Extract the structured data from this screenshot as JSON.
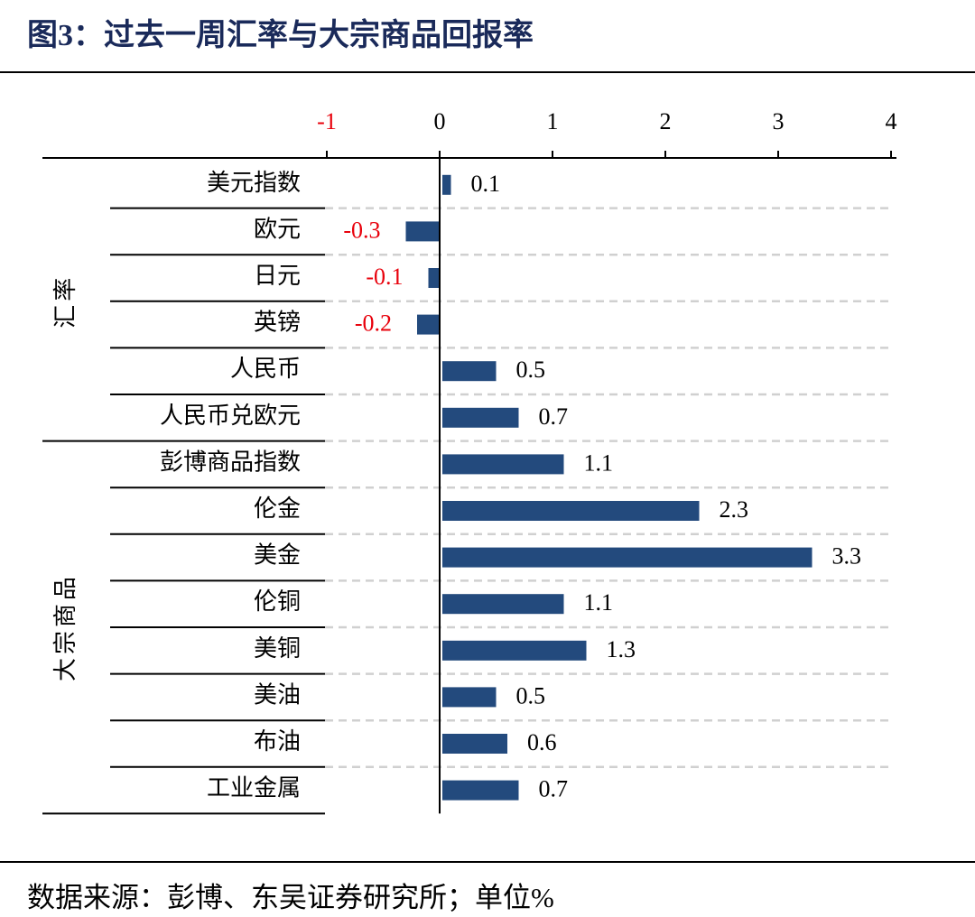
{
  "chart_data": {
    "type": "bar",
    "orientation": "horizontal",
    "title": "图3：过去一周汇率与大宗商品回报率",
    "source": "数据来源：彭博、东吴证券研究所；单位%",
    "color": "#234a7d",
    "negative_label_color": "#e8000b",
    "xlim": [
      -1,
      4
    ],
    "xticks": [
      -1,
      0,
      1,
      2,
      3,
      4
    ],
    "groups": [
      {
        "name": "汇率",
        "categories": [
          "美元指数",
          "欧元",
          "日元",
          "英镑",
          "人民币",
          "人民币兑欧元"
        ],
        "values": [
          0.1,
          -0.3,
          -0.1,
          -0.2,
          0.5,
          0.7
        ]
      },
      {
        "name": "大宗商品",
        "categories": [
          "彭博商品指数",
          "伦金",
          "美金",
          "伦铜",
          "美铜",
          "美油",
          "布油",
          "工业金属"
        ],
        "values": [
          1.1,
          2.3,
          3.3,
          1.1,
          1.3,
          0.5,
          0.6,
          0.7
        ]
      }
    ]
  }
}
